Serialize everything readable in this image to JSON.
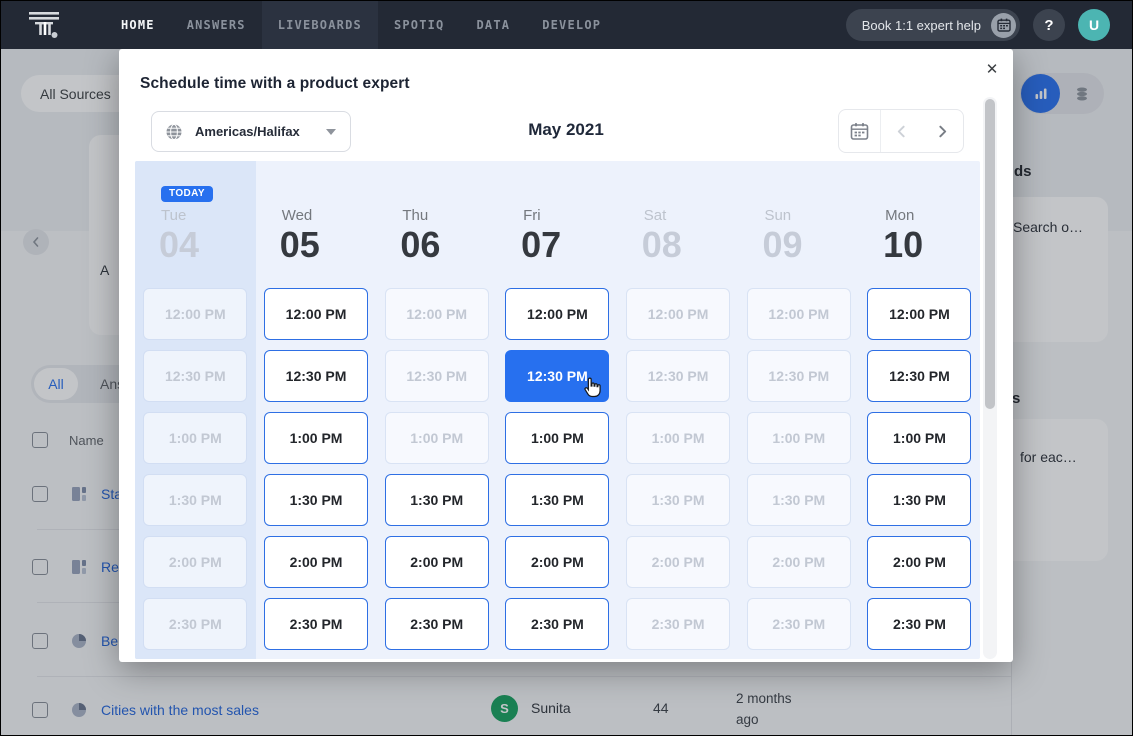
{
  "nav": {
    "items": [
      {
        "label": "HOME",
        "active": true,
        "highlight": false
      },
      {
        "label": "ANSWERS",
        "active": false,
        "highlight": false
      },
      {
        "label": "LIVEBOARDS",
        "active": false,
        "highlight": true
      },
      {
        "label": "SPOTIQ",
        "active": false,
        "highlight": false
      },
      {
        "label": "DATA",
        "active": false,
        "highlight": false
      },
      {
        "label": "DEVELOP",
        "active": false,
        "highlight": false
      }
    ],
    "book_button_label": "Book 1:1 expert help",
    "help_label": "?",
    "avatar_initial": "U"
  },
  "page": {
    "all_sources_label": "All Sources",
    "carousel_fragment": "A",
    "tabs": {
      "all": "All",
      "answers_fragment": "Ans"
    },
    "table": {
      "name_header": "Name",
      "rows": [
        {
          "icon": "liveboard",
          "label_fragment": "Sta"
        },
        {
          "icon": "liveboard",
          "label_fragment": "Re"
        },
        {
          "icon": "pie",
          "label_fragment": "Be"
        }
      ],
      "bottom_row": {
        "icon": "pie",
        "title": "Cities with the most sales",
        "author_initial": "S",
        "author": "Sunita",
        "count": "44",
        "modified": "2 months ago"
      }
    },
    "right_panel": {
      "heading_fragment": "ds",
      "card1_fragment": "Search o…",
      "heading2_fragment": "s",
      "card2_fragment": "for eac…"
    }
  },
  "modal": {
    "title": "Schedule time with a product expert",
    "close_label": "✕",
    "timezone": "Americas/Halifax",
    "month_label": "May 2021",
    "today_badge": "TODAY",
    "times": [
      "12:00 PM",
      "12:30 PM",
      "1:00 PM",
      "1:30 PM",
      "2:00 PM",
      "2:30 PM"
    ],
    "days": [
      {
        "name": "Tue",
        "date": "04",
        "disabled": true,
        "today": true,
        "slots": [
          "disabled",
          "disabled",
          "disabled",
          "disabled",
          "disabled",
          "disabled"
        ]
      },
      {
        "name": "Wed",
        "date": "05",
        "disabled": false,
        "today": false,
        "slots": [
          "available",
          "available",
          "available",
          "available",
          "available",
          "available"
        ]
      },
      {
        "name": "Thu",
        "date": "06",
        "disabled": false,
        "today": false,
        "slots": [
          "disabled",
          "disabled",
          "disabled",
          "available",
          "available",
          "available"
        ]
      },
      {
        "name": "Fri",
        "date": "07",
        "disabled": false,
        "today": false,
        "slots": [
          "available",
          "selected",
          "available",
          "available",
          "available",
          "available"
        ]
      },
      {
        "name": "Sat",
        "date": "08",
        "disabled": true,
        "today": false,
        "slots": [
          "disabled",
          "disabled",
          "disabled",
          "disabled",
          "disabled",
          "disabled"
        ]
      },
      {
        "name": "Sun",
        "date": "09",
        "disabled": true,
        "today": false,
        "slots": [
          "disabled",
          "disabled",
          "disabled",
          "disabled",
          "disabled",
          "disabled"
        ]
      },
      {
        "name": "Mon",
        "date": "10",
        "disabled": false,
        "today": false,
        "slots": [
          "available",
          "available",
          "available",
          "available",
          "available",
          "available"
        ]
      }
    ]
  },
  "colors": {
    "accent_blue": "#2770EF",
    "nav_bg": "#232935",
    "nav_highlight": "#2B3240",
    "avatar_teal": "#4CB5B2",
    "author_green": "#16A05D",
    "calendar_bg": "#EDF2FC",
    "today_column_bg": "#DBE6F8",
    "link_blue": "#2264DC",
    "disabled_text": "#C2C8D3"
  }
}
